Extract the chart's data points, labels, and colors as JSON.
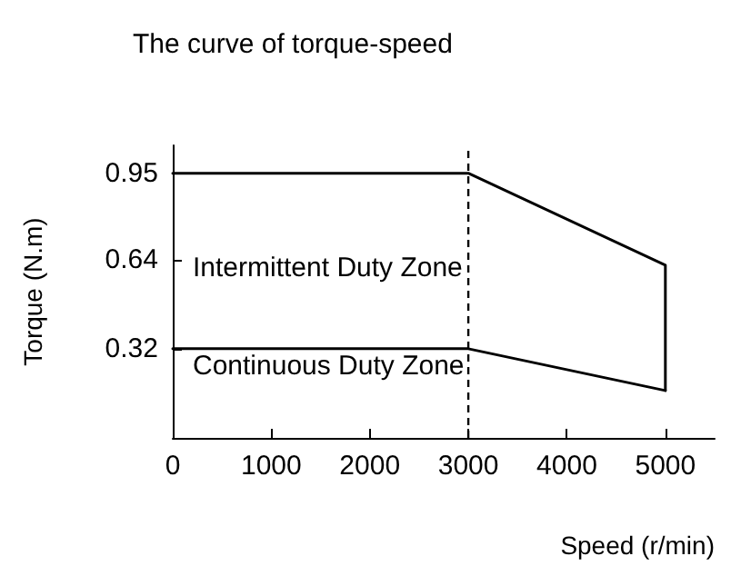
{
  "chart_data": {
    "type": "line",
    "title": "The curve of torque-speed",
    "xlabel": "Speed (r/min)",
    "ylabel": "Torque (N.m)",
    "xlim": [
      0,
      5500
    ],
    "xticks": [
      0,
      1000,
      2000,
      3000,
      4000,
      5000
    ],
    "ylim": [
      0,
      1.05
    ],
    "yticks": [
      0.32,
      0.64,
      0.95
    ],
    "series": [
      {
        "color": "#000000",
        "x": [
          0,
          3000,
          5000,
          5000
        ],
        "values": [
          0.95,
          0.95,
          0.62,
          0.17
        ]
      },
      {
        "color": "#000000",
        "x": [
          0,
          3000,
          5000
        ],
        "values": [
          0.32,
          0.32,
          0.17
        ]
      }
    ],
    "ref_lines": [
      {
        "axis": "x",
        "value": 3000,
        "color": "#000000",
        "line_style": "dashed"
      }
    ],
    "annotations": [
      "Intermittent Duty Zone",
      "Continuous Duty Zone"
    ],
    "grid": false,
    "marker": "none",
    "line_style": "solid"
  }
}
